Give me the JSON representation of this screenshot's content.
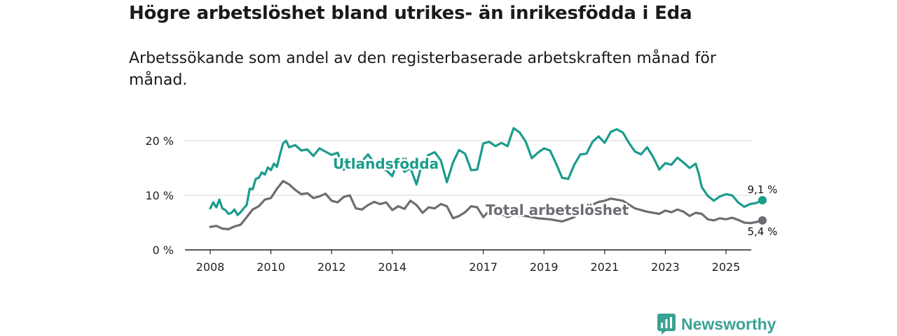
{
  "title": "Högre arbetslöshet bland utrikes- än inrikesfödda i Eda",
  "subtitle": "Arbetssökande som andel av den registerbaserade arbetskraften månad för månad.",
  "brand": {
    "name": "Newsworthy",
    "color": "#3aa293"
  },
  "chart_data": {
    "type": "line",
    "title": "Högre arbetslöshet bland utrikes- än inrikesfödda i Eda",
    "xlabel": "",
    "ylabel": "",
    "xlim": [
      2007.5,
      2026.9
    ],
    "ylim": [
      0,
      22
    ],
    "y_ticks": [
      0,
      10,
      20
    ],
    "y_tick_labels": [
      "0 %",
      "10 %",
      "20 %"
    ],
    "x_ticks": [
      2008,
      2010,
      2012,
      2014,
      2017,
      2019,
      2021,
      2023,
      2025
    ],
    "x_tick_labels": [
      "2008",
      "2010",
      "2012",
      "2014",
      "2017",
      "2019",
      "2021",
      "2023",
      "2025"
    ],
    "grid": true,
    "series": [
      {
        "name": "Utlandsfödda",
        "color": "#1a9c8c",
        "end_label": "9,1 %",
        "points": [
          [
            2008.0,
            7.6
          ],
          [
            2008.1,
            8.7
          ],
          [
            2008.2,
            7.8
          ],
          [
            2008.3,
            9.2
          ],
          [
            2008.4,
            7.6
          ],
          [
            2008.5,
            7.3
          ],
          [
            2008.6,
            6.6
          ],
          [
            2008.7,
            6.8
          ],
          [
            2008.8,
            7.4
          ],
          [
            2008.9,
            6.4
          ],
          [
            2009.0,
            6.9
          ],
          [
            2009.1,
            7.6
          ],
          [
            2009.2,
            8.2
          ],
          [
            2009.3,
            11.2
          ],
          [
            2009.4,
            11.1
          ],
          [
            2009.5,
            13.0
          ],
          [
            2009.6,
            13.2
          ],
          [
            2009.7,
            14.2
          ],
          [
            2009.8,
            13.8
          ],
          [
            2009.9,
            15.1
          ],
          [
            2010.0,
            14.6
          ],
          [
            2010.1,
            15.8
          ],
          [
            2010.2,
            15.2
          ],
          [
            2010.3,
            17.5
          ],
          [
            2010.4,
            19.5
          ],
          [
            2010.5,
            20.0
          ],
          [
            2010.6,
            18.8
          ],
          [
            2010.8,
            19.2
          ],
          [
            2011.0,
            18.2
          ],
          [
            2011.2,
            18.4
          ],
          [
            2011.4,
            17.2
          ],
          [
            2011.6,
            18.6
          ],
          [
            2011.8,
            18.0
          ],
          [
            2012.0,
            17.4
          ],
          [
            2012.2,
            17.8
          ],
          [
            2012.4,
            14.7
          ],
          [
            2012.6,
            15.5
          ],
          [
            2012.8,
            16.0
          ],
          [
            2013.0,
            16.2
          ],
          [
            2013.2,
            17.5
          ],
          [
            2013.4,
            16.0
          ],
          [
            2013.6,
            15.0
          ],
          [
            2013.8,
            14.6
          ],
          [
            2014.0,
            13.5
          ],
          [
            2014.2,
            16.6
          ],
          [
            2014.4,
            14.3
          ],
          [
            2014.6,
            15.0
          ],
          [
            2014.8,
            12.0
          ],
          [
            2015.0,
            16.2
          ],
          [
            2015.2,
            17.4
          ],
          [
            2015.4,
            17.9
          ],
          [
            2015.6,
            16.4
          ],
          [
            2015.8,
            12.4
          ],
          [
            2016.0,
            16.0
          ],
          [
            2016.2,
            18.3
          ],
          [
            2016.4,
            17.6
          ],
          [
            2016.6,
            14.6
          ],
          [
            2016.8,
            14.7
          ],
          [
            2017.0,
            19.5
          ],
          [
            2017.2,
            19.8
          ],
          [
            2017.4,
            19.0
          ],
          [
            2017.6,
            19.6
          ],
          [
            2017.8,
            19.0
          ],
          [
            2018.0,
            22.3
          ],
          [
            2018.2,
            21.5
          ],
          [
            2018.4,
            19.8
          ],
          [
            2018.6,
            16.8
          ],
          [
            2018.8,
            17.8
          ],
          [
            2019.0,
            18.6
          ],
          [
            2019.2,
            18.2
          ],
          [
            2019.4,
            15.8
          ],
          [
            2019.6,
            13.2
          ],
          [
            2019.8,
            13.0
          ],
          [
            2020.0,
            15.6
          ],
          [
            2020.2,
            17.5
          ],
          [
            2020.4,
            17.6
          ],
          [
            2020.6,
            19.8
          ],
          [
            2020.8,
            20.8
          ],
          [
            2021.0,
            19.6
          ],
          [
            2021.2,
            21.6
          ],
          [
            2021.4,
            22.1
          ],
          [
            2021.6,
            21.5
          ],
          [
            2021.8,
            19.6
          ],
          [
            2022.0,
            18.0
          ],
          [
            2022.2,
            17.5
          ],
          [
            2022.4,
            18.8
          ],
          [
            2022.6,
            17.0
          ],
          [
            2022.8,
            14.7
          ],
          [
            2023.0,
            15.9
          ],
          [
            2023.2,
            15.6
          ],
          [
            2023.4,
            16.9
          ],
          [
            2023.6,
            16.0
          ],
          [
            2023.8,
            15.0
          ],
          [
            2024.0,
            15.8
          ],
          [
            2024.1,
            14.0
          ],
          [
            2024.2,
            11.5
          ],
          [
            2024.4,
            9.9
          ],
          [
            2024.6,
            9.0
          ],
          [
            2024.8,
            9.8
          ],
          [
            2025.0,
            10.2
          ],
          [
            2025.2,
            10.0
          ],
          [
            2025.4,
            8.7
          ],
          [
            2025.6,
            7.9
          ],
          [
            2025.8,
            8.4
          ],
          [
            2026.0,
            8.6
          ],
          [
            2026.2,
            9.1
          ]
        ]
      },
      {
        "name": "Total arbetslöshet",
        "color": "#6e6c72",
        "end_label": "5,4 %",
        "points": [
          [
            2008.0,
            4.2
          ],
          [
            2008.2,
            4.4
          ],
          [
            2008.4,
            3.9
          ],
          [
            2008.6,
            3.8
          ],
          [
            2008.8,
            4.3
          ],
          [
            2009.0,
            4.6
          ],
          [
            2009.2,
            6.0
          ],
          [
            2009.4,
            7.4
          ],
          [
            2009.6,
            8.0
          ],
          [
            2009.8,
            9.2
          ],
          [
            2010.0,
            9.5
          ],
          [
            2010.2,
            11.2
          ],
          [
            2010.4,
            12.6
          ],
          [
            2010.6,
            12.0
          ],
          [
            2010.8,
            11.0
          ],
          [
            2011.0,
            10.2
          ],
          [
            2011.2,
            10.4
          ],
          [
            2011.4,
            9.5
          ],
          [
            2011.6,
            9.8
          ],
          [
            2011.8,
            10.3
          ],
          [
            2012.0,
            9.0
          ],
          [
            2012.2,
            8.7
          ],
          [
            2012.4,
            9.7
          ],
          [
            2012.6,
            10.0
          ],
          [
            2012.8,
            7.6
          ],
          [
            2013.0,
            7.4
          ],
          [
            2013.2,
            8.2
          ],
          [
            2013.4,
            8.8
          ],
          [
            2013.6,
            8.4
          ],
          [
            2013.8,
            8.7
          ],
          [
            2014.0,
            7.3
          ],
          [
            2014.2,
            8.0
          ],
          [
            2014.4,
            7.5
          ],
          [
            2014.6,
            9.0
          ],
          [
            2014.8,
            8.2
          ],
          [
            2015.0,
            6.8
          ],
          [
            2015.2,
            7.8
          ],
          [
            2015.4,
            7.6
          ],
          [
            2015.6,
            8.4
          ],
          [
            2015.8,
            8.0
          ],
          [
            2016.0,
            5.8
          ],
          [
            2016.2,
            6.2
          ],
          [
            2016.4,
            6.9
          ],
          [
            2016.6,
            8.0
          ],
          [
            2016.8,
            7.8
          ],
          [
            2017.0,
            6.0
          ],
          [
            2017.2,
            7.2
          ],
          [
            2017.4,
            7.6
          ],
          [
            2017.6,
            6.6
          ],
          [
            2017.8,
            6.0
          ],
          [
            2018.0,
            6.4
          ],
          [
            2018.4,
            6.2
          ],
          [
            2018.8,
            5.8
          ],
          [
            2019.2,
            5.6
          ],
          [
            2019.6,
            5.2
          ],
          [
            2020.0,
            6.0
          ],
          [
            2020.4,
            7.8
          ],
          [
            2020.8,
            8.8
          ],
          [
            2021.0,
            9.0
          ],
          [
            2021.2,
            9.4
          ],
          [
            2021.6,
            9.0
          ],
          [
            2022.0,
            7.6
          ],
          [
            2022.4,
            7.0
          ],
          [
            2022.8,
            6.6
          ],
          [
            2023.0,
            7.2
          ],
          [
            2023.2,
            6.9
          ],
          [
            2023.4,
            7.4
          ],
          [
            2023.6,
            7.0
          ],
          [
            2023.8,
            6.2
          ],
          [
            2024.0,
            6.8
          ],
          [
            2024.2,
            6.6
          ],
          [
            2024.4,
            5.6
          ],
          [
            2024.6,
            5.4
          ],
          [
            2024.8,
            5.8
          ],
          [
            2025.0,
            5.6
          ],
          [
            2025.2,
            5.9
          ],
          [
            2025.4,
            5.5
          ],
          [
            2025.6,
            5.0
          ],
          [
            2025.8,
            4.9
          ],
          [
            2026.0,
            5.1
          ],
          [
            2026.2,
            5.4
          ]
        ]
      }
    ]
  }
}
